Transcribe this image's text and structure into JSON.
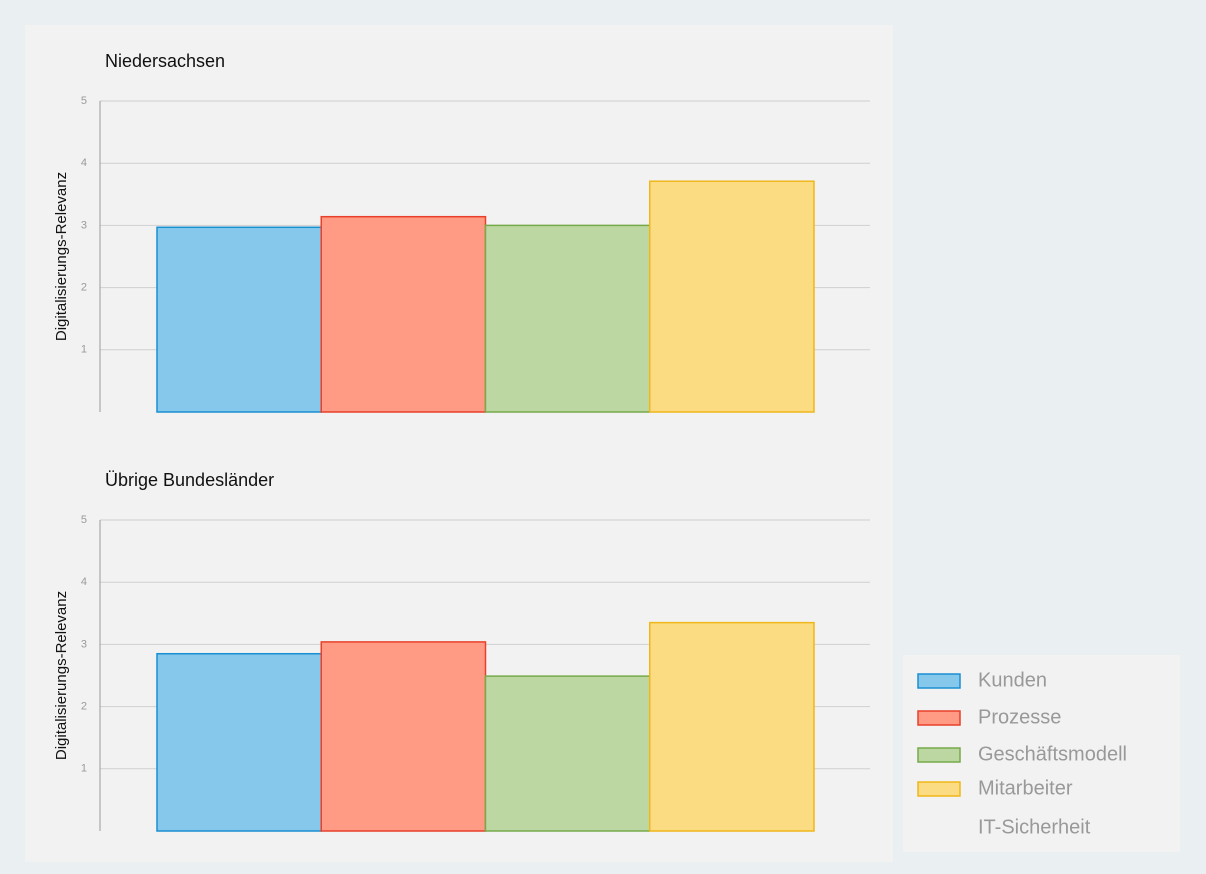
{
  "chart_data": [
    {
      "type": "bar",
      "title": "Niedersachsen",
      "ylabel": "Digitalisierungs-Relevanz",
      "ylim": [
        0,
        5
      ],
      "yticks": [
        1,
        2,
        3,
        4,
        5
      ],
      "grid": true,
      "series": [
        {
          "name": "Kunden",
          "color": "#85c8ec",
          "edgecolor": "#1a8fd1",
          "values": [
            2.97
          ]
        },
        {
          "name": "Prozesse",
          "color": "#ff9a85",
          "edgecolor": "#e8402a",
          "values": [
            3.14
          ]
        },
        {
          "name": "Geschäftsmodell",
          "color": "#bdd7a2",
          "edgecolor": "#76aa4a",
          "values": [
            3.0
          ]
        },
        {
          "name": "Mitarbeiter",
          "color": "#fcdc82",
          "edgecolor": "#f0b71b",
          "values": [
            3.71
          ]
        },
        {
          "name": "IT-Sicherheit",
          "values": [
            null
          ]
        }
      ]
    },
    {
      "type": "bar",
      "title": "Übrige Bundesländer",
      "ylabel": "Digitalisierungs-Relevanz",
      "ylim": [
        0,
        5
      ],
      "yticks": [
        1,
        2,
        3,
        4,
        5
      ],
      "grid": true,
      "series": [
        {
          "name": "Kunden",
          "color": "#85c8ec",
          "edgecolor": "#1a8fd1",
          "values": [
            2.85
          ]
        },
        {
          "name": "Prozesse",
          "color": "#ff9a85",
          "edgecolor": "#e8402a",
          "values": [
            3.04
          ]
        },
        {
          "name": "Geschäftsmodell",
          "color": "#bdd7a2",
          "edgecolor": "#76aa4a",
          "values": [
            2.49
          ]
        },
        {
          "name": "Mitarbeiter",
          "color": "#fcdc82",
          "edgecolor": "#f0b71b",
          "values": [
            3.35
          ]
        },
        {
          "name": "IT-Sicherheit",
          "values": [
            null
          ]
        }
      ]
    }
  ]
}
